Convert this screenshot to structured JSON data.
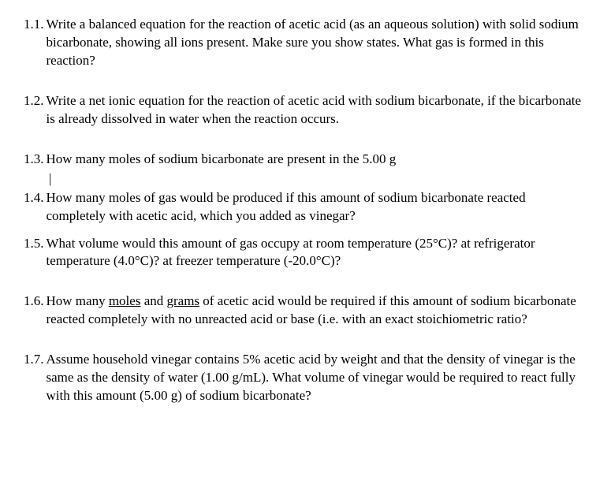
{
  "questions": {
    "q1": {
      "num": "1.1.",
      "text_a": "Write a balanced equation for the reaction of acetic acid (as an aqueous solution) with solid sodium bicarbonate, showing all ions present. Make sure you show states. What gas is formed in this reaction?"
    },
    "q2": {
      "num": "1.2.",
      "text_a": "Write a net ionic equation for the reaction of acetic acid with sodium bicarbonate, if the bicarbonate is already dissolved in water when the reaction occurs."
    },
    "q3": {
      "num": "1.3.",
      "text_a": "How many moles of sodium bicarbonate are present in the 5.00 ",
      "underlined": "g"
    },
    "cursor": "|",
    "q4": {
      "num": "1.4.",
      "text_a": "How many moles of gas would be produced if this amount of sodium bicarbonate reacted completely with acetic acid, which you added as vinegar?"
    },
    "q5": {
      "num": "1.5.",
      "text_a": "What volume would this amount of gas occupy at room temperature (25°C)? at refrigerator temperature (4.0°C)? at freezer temperature (-20.0°C)?"
    },
    "q6": {
      "num": "1.6.",
      "text_a": "How many ",
      "u1": "moles",
      "text_b": " and ",
      "u2": "grams",
      "text_c": " of acetic acid would be required if this amount of sodium bicarbonate reacted completely with no unreacted acid or base (i.e. with an exact stoichiometric ratio?"
    },
    "q7": {
      "num": "1.7.",
      "text_a": "Assume household vinegar contains 5% acetic acid by weight and that the density of vinegar is the same as the density of water (1.00 g/mL). What volume of vinegar would be required to react fully with this amount (5.00 g) of sodium bicarbonate?"
    }
  }
}
